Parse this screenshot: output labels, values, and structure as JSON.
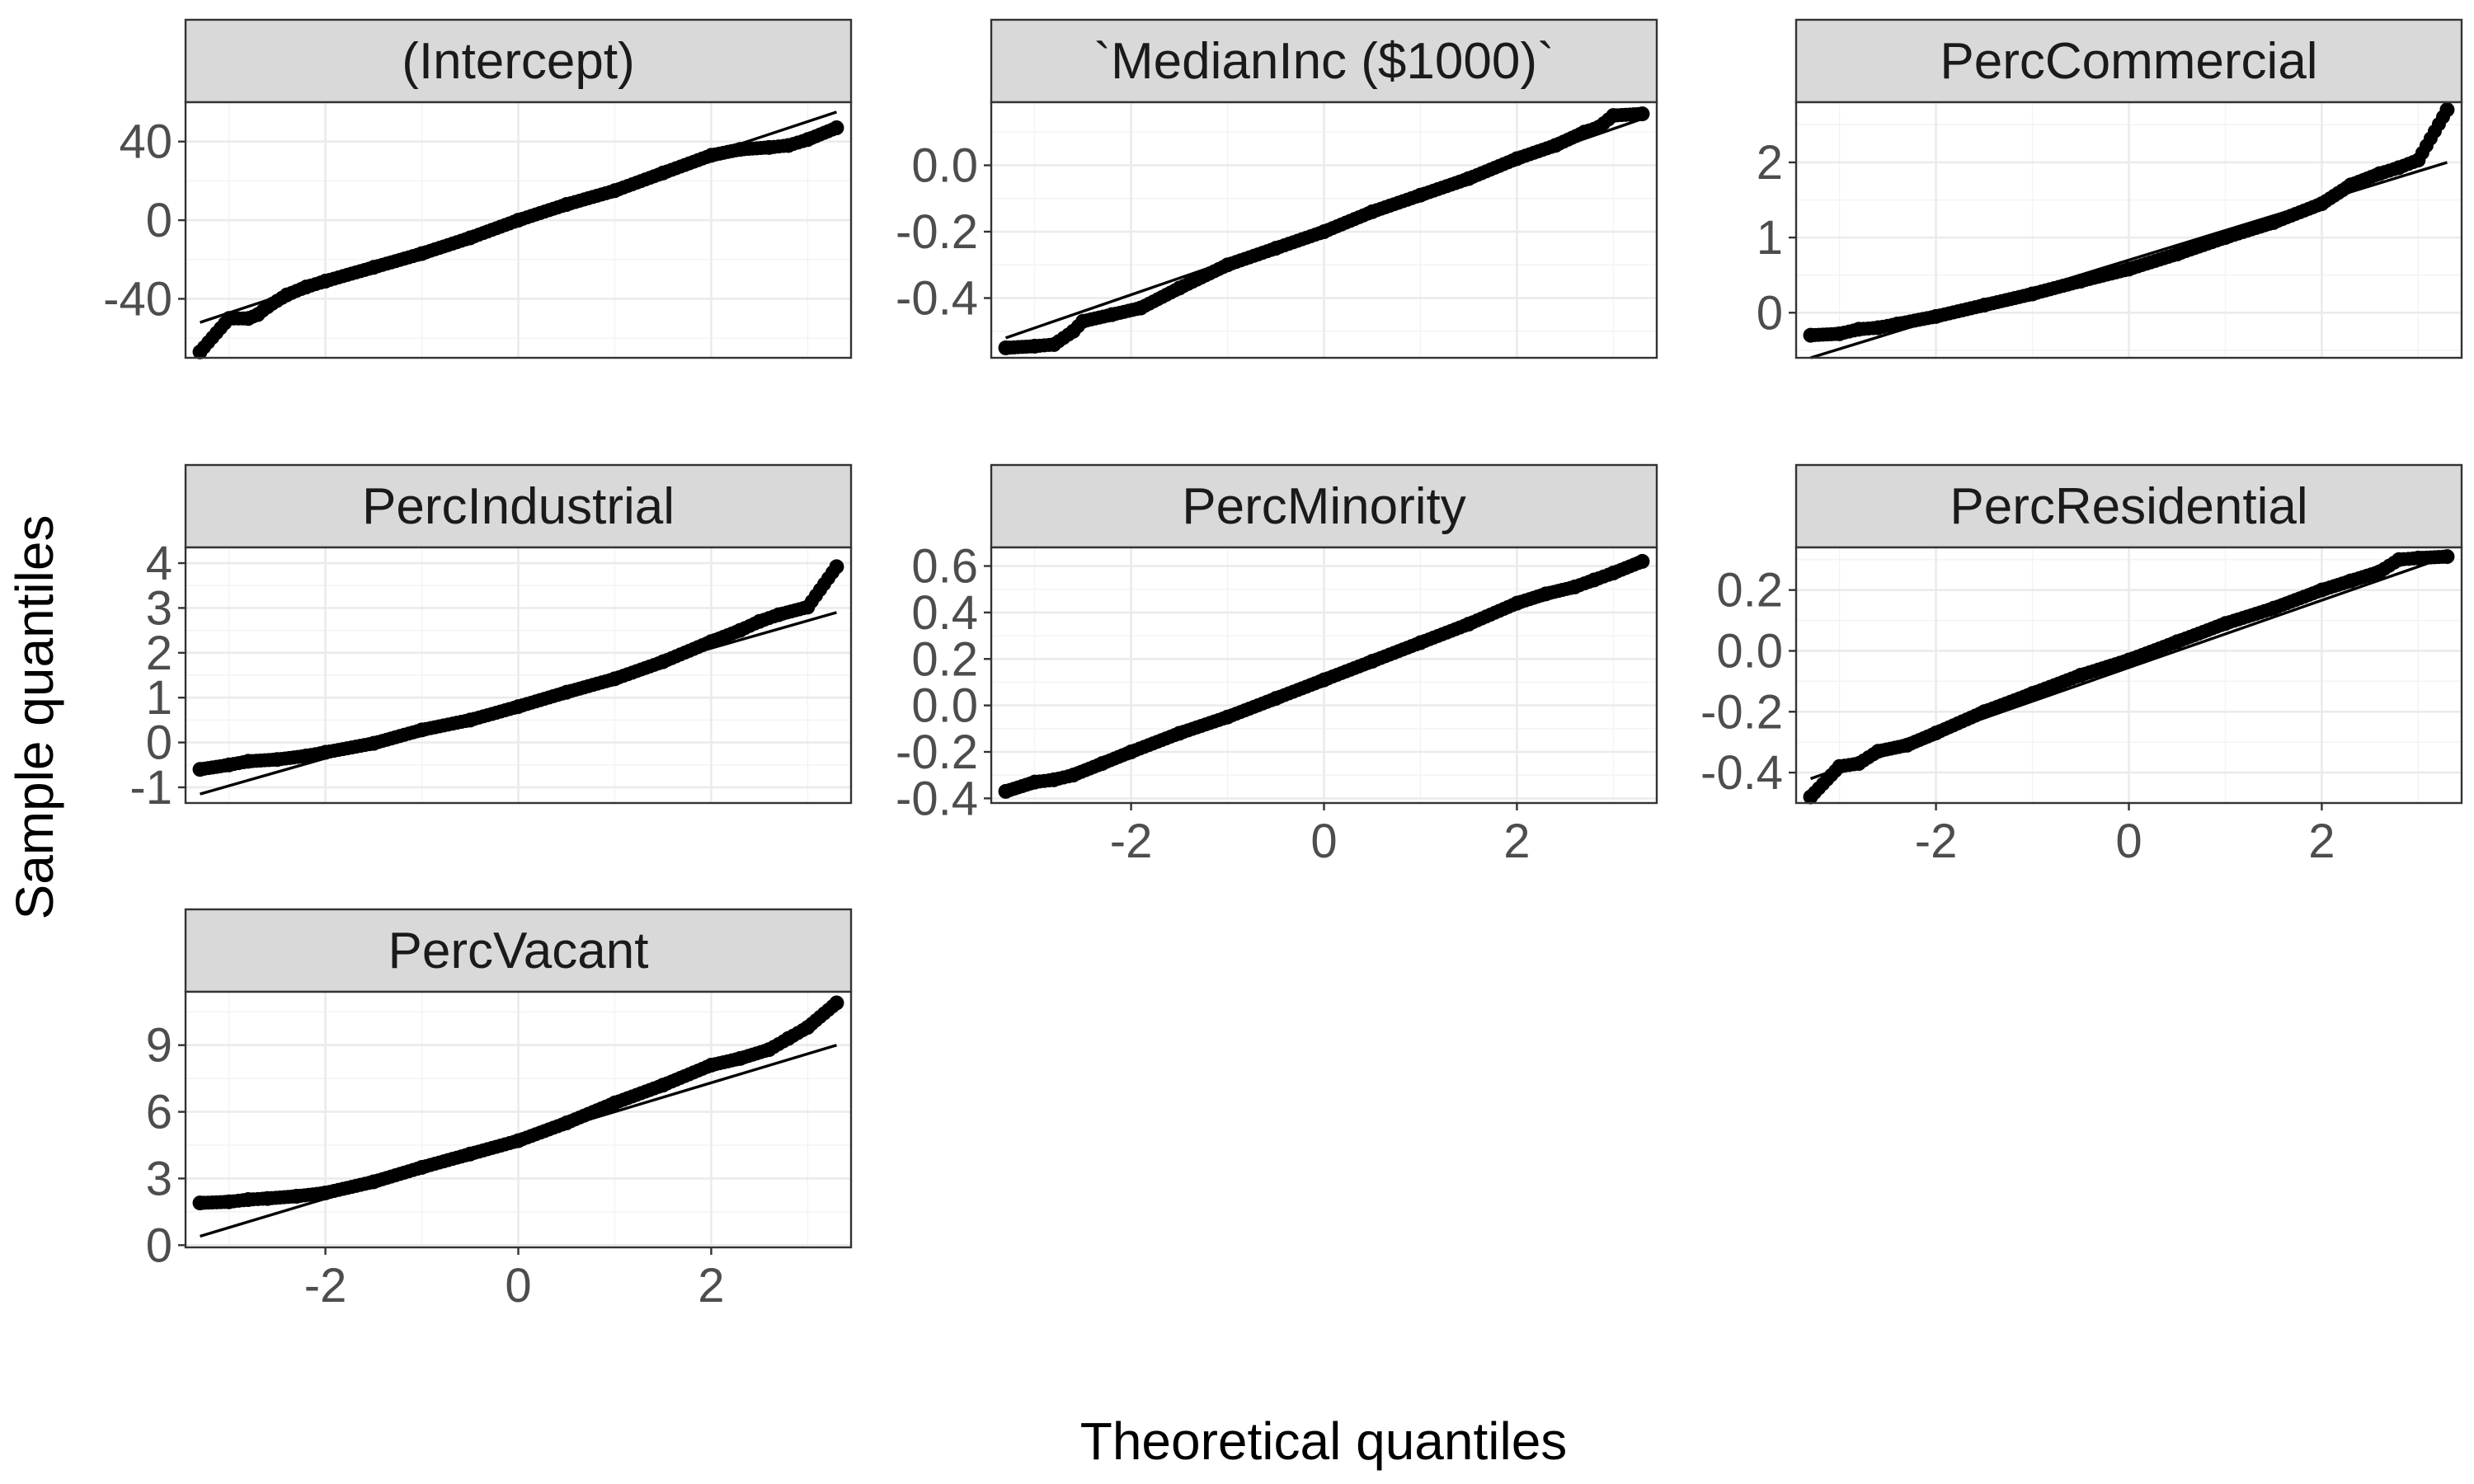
{
  "chart_data": {
    "type": "scatter",
    "xlabel": "Theoretical quantiles",
    "ylabel": "Sample quantiles",
    "xlim": [
      -3.45,
      3.45
    ],
    "x_ticks": [
      -2,
      0,
      2
    ],
    "grid": true,
    "panels": [
      {
        "title": "(Intercept)",
        "ylim": [
          -70,
          60
        ],
        "y_ticks": [
          -40,
          0,
          40
        ],
        "y_tick_labels": [
          "-40",
          "0",
          "40"
        ],
        "line": [
          [
            -3.3,
            -52
          ],
          [
            3.3,
            55
          ]
        ],
        "points": [
          [
            -3.3,
            -67
          ],
          [
            -3.0,
            -50
          ],
          [
            -2.8,
            -50
          ],
          [
            -2.7,
            -48
          ],
          [
            -2.6,
            -44
          ],
          [
            -2.4,
            -38
          ],
          [
            -2.2,
            -34
          ],
          [
            -2.0,
            -31
          ],
          [
            -1.5,
            -24
          ],
          [
            -1.0,
            -17
          ],
          [
            -0.5,
            -9
          ],
          [
            0.0,
            0
          ],
          [
            0.5,
            8
          ],
          [
            1.0,
            15
          ],
          [
            1.5,
            24
          ],
          [
            2.0,
            33
          ],
          [
            2.3,
            36
          ],
          [
            2.6,
            37
          ],
          [
            2.8,
            38
          ],
          [
            3.0,
            41
          ],
          [
            3.3,
            47
          ]
        ]
      },
      {
        "title": "`MedianInc ($1000)`",
        "ylim": [
          -0.58,
          0.19
        ],
        "y_ticks": [
          -0.4,
          -0.2,
          0.0
        ],
        "y_tick_labels": [
          "-0.4",
          "-0.2",
          "0.0"
        ],
        "line": [
          [
            -3.3,
            -0.52
          ],
          [
            3.3,
            0.14
          ]
        ],
        "points": [
          [
            -3.3,
            -0.55
          ],
          [
            -3.0,
            -0.545
          ],
          [
            -2.8,
            -0.54
          ],
          [
            -2.6,
            -0.5
          ],
          [
            -2.5,
            -0.47
          ],
          [
            -2.2,
            -0.45
          ],
          [
            -1.9,
            -0.43
          ],
          [
            -1.5,
            -0.37
          ],
          [
            -1.0,
            -0.3
          ],
          [
            -0.5,
            -0.25
          ],
          [
            0.0,
            -0.2
          ],
          [
            0.5,
            -0.14
          ],
          [
            1.0,
            -0.09
          ],
          [
            1.5,
            -0.04
          ],
          [
            2.0,
            0.02
          ],
          [
            2.4,
            0.06
          ],
          [
            2.7,
            0.1
          ],
          [
            2.85,
            0.115
          ],
          [
            3.0,
            0.15
          ],
          [
            3.3,
            0.155
          ]
        ]
      },
      {
        "title": "PercCommercial",
        "ylim": [
          -0.6,
          2.8
        ],
        "y_ticks": [
          0,
          1,
          2
        ],
        "y_tick_labels": [
          "0",
          "1",
          "2"
        ],
        "line": [
          [
            -3.3,
            -0.6
          ],
          [
            3.3,
            2.0
          ]
        ],
        "points": [
          [
            -3.3,
            -0.3
          ],
          [
            -3.0,
            -0.28
          ],
          [
            -2.8,
            -0.22
          ],
          [
            -2.6,
            -0.2
          ],
          [
            -2.4,
            -0.15
          ],
          [
            -2.0,
            -0.05
          ],
          [
            -1.5,
            0.1
          ],
          [
            -1.0,
            0.25
          ],
          [
            -0.5,
            0.42
          ],
          [
            0.0,
            0.58
          ],
          [
            0.5,
            0.78
          ],
          [
            1.0,
            1.0
          ],
          [
            1.5,
            1.2
          ],
          [
            2.0,
            1.45
          ],
          [
            2.3,
            1.7
          ],
          [
            2.6,
            1.85
          ],
          [
            2.8,
            1.93
          ],
          [
            3.0,
            2.03
          ],
          [
            3.3,
            2.7
          ]
        ]
      },
      {
        "title": "PercIndustrial",
        "ylim": [
          -1.35,
          4.35
        ],
        "y_ticks": [
          -1,
          0,
          1,
          2,
          3,
          4
        ],
        "y_tick_labels": [
          "-1",
          "0",
          "1",
          "2",
          "3",
          "4"
        ],
        "line": [
          [
            -3.3,
            -1.15
          ],
          [
            3.3,
            2.9
          ]
        ],
        "points": [
          [
            -3.3,
            -0.6
          ],
          [
            -3.0,
            -0.5
          ],
          [
            -2.8,
            -0.42
          ],
          [
            -2.5,
            -0.38
          ],
          [
            -2.2,
            -0.3
          ],
          [
            -2.0,
            -0.22
          ],
          [
            -1.5,
            -0.02
          ],
          [
            -1.0,
            0.28
          ],
          [
            -0.5,
            0.5
          ],
          [
            0.0,
            0.8
          ],
          [
            0.5,
            1.12
          ],
          [
            1.0,
            1.42
          ],
          [
            1.5,
            1.8
          ],
          [
            2.0,
            2.25
          ],
          [
            2.3,
            2.5
          ],
          [
            2.5,
            2.7
          ],
          [
            2.7,
            2.85
          ],
          [
            3.0,
            3.02
          ],
          [
            3.3,
            3.92
          ]
        ]
      },
      {
        "title": "PercMinority",
        "ylim": [
          -0.42,
          0.68
        ],
        "y_ticks": [
          -0.4,
          -0.2,
          0.0,
          0.2,
          0.4,
          0.6
        ],
        "y_tick_labels": [
          "-0.4",
          "-0.2",
          "0.0",
          "0.2",
          "0.4",
          "0.6"
        ],
        "line": [
          [
            -3.3,
            -0.38
          ],
          [
            3.3,
            0.62
          ]
        ],
        "points": [
          [
            -3.3,
            -0.37
          ],
          [
            -3.0,
            -0.33
          ],
          [
            -2.8,
            -0.32
          ],
          [
            -2.6,
            -0.3
          ],
          [
            -2.3,
            -0.25
          ],
          [
            -2.0,
            -0.2
          ],
          [
            -1.5,
            -0.12
          ],
          [
            -1.0,
            -0.05
          ],
          [
            -0.5,
            0.03
          ],
          [
            0.0,
            0.11
          ],
          [
            0.5,
            0.19
          ],
          [
            1.0,
            0.27
          ],
          [
            1.5,
            0.35
          ],
          [
            2.0,
            0.44
          ],
          [
            2.3,
            0.48
          ],
          [
            2.6,
            0.51
          ],
          [
            2.8,
            0.54
          ],
          [
            3.0,
            0.57
          ],
          [
            3.3,
            0.62
          ]
        ]
      },
      {
        "title": "PercResidential",
        "ylim": [
          -0.5,
          0.34
        ],
        "y_ticks": [
          -0.4,
          -0.2,
          0.0,
          0.2
        ],
        "y_tick_labels": [
          "-0.4",
          "-0.2",
          "0.0",
          "0.2"
        ],
        "line": [
          [
            -3.3,
            -0.42
          ],
          [
            3.3,
            0.31
          ]
        ],
        "points": [
          [
            -3.3,
            -0.48
          ],
          [
            -3.0,
            -0.38
          ],
          [
            -2.8,
            -0.37
          ],
          [
            -2.6,
            -0.33
          ],
          [
            -2.3,
            -0.31
          ],
          [
            -2.0,
            -0.27
          ],
          [
            -1.5,
            -0.2
          ],
          [
            -1.0,
            -0.14
          ],
          [
            -0.5,
            -0.08
          ],
          [
            0.0,
            -0.03
          ],
          [
            0.5,
            0.03
          ],
          [
            1.0,
            0.09
          ],
          [
            1.5,
            0.14
          ],
          [
            2.0,
            0.2
          ],
          [
            2.3,
            0.23
          ],
          [
            2.6,
            0.26
          ],
          [
            2.8,
            0.3
          ],
          [
            3.0,
            0.305
          ],
          [
            3.3,
            0.31
          ]
        ]
      },
      {
        "title": "PercVacant",
        "ylim": [
          -0.1,
          11.4
        ],
        "y_ticks": [
          0,
          3,
          6,
          9
        ],
        "y_tick_labels": [
          "0",
          "3",
          "6",
          "9"
        ],
        "line": [
          [
            -3.3,
            0.4
          ],
          [
            3.3,
            9.0
          ]
        ],
        "points": [
          [
            -3.3,
            1.9
          ],
          [
            -3.0,
            1.95
          ],
          [
            -2.8,
            2.05
          ],
          [
            -2.6,
            2.1
          ],
          [
            -2.3,
            2.2
          ],
          [
            -2.0,
            2.35
          ],
          [
            -1.5,
            2.85
          ],
          [
            -1.0,
            3.5
          ],
          [
            -0.5,
            4.1
          ],
          [
            0.0,
            4.7
          ],
          [
            0.5,
            5.5
          ],
          [
            1.0,
            6.4
          ],
          [
            1.5,
            7.2
          ],
          [
            2.0,
            8.1
          ],
          [
            2.3,
            8.4
          ],
          [
            2.6,
            8.8
          ],
          [
            2.8,
            9.3
          ],
          [
            3.0,
            9.8
          ],
          [
            3.3,
            10.9
          ]
        ]
      }
    ]
  }
}
